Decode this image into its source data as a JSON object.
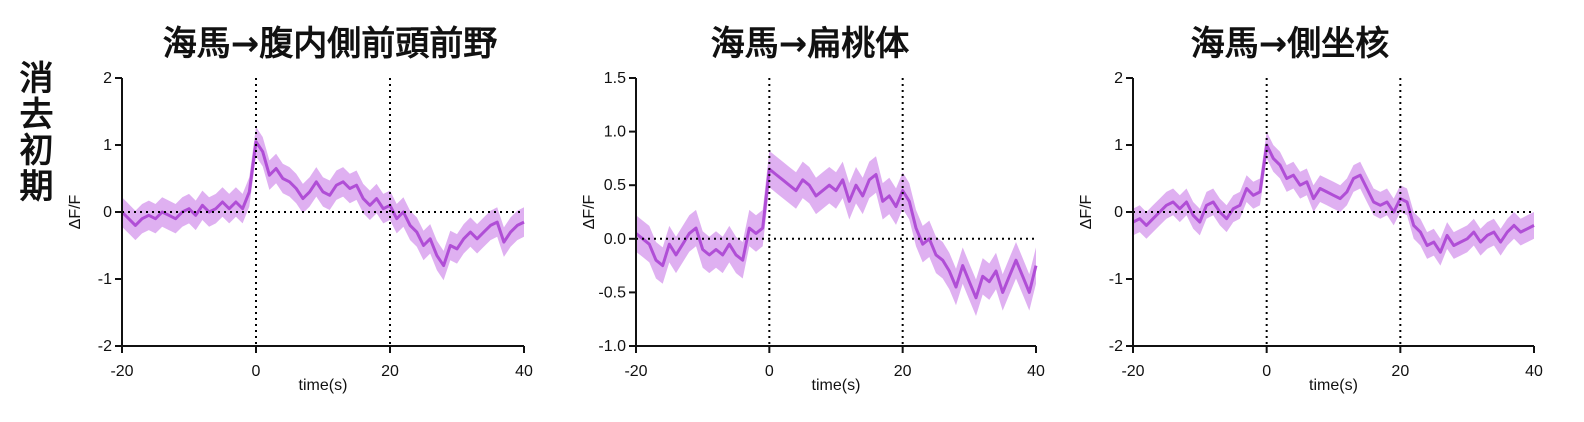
{
  "row_label": "消去初期",
  "colors": {
    "line": "#b04ed6",
    "band": "#d9a2ee",
    "axis": "#111111"
  },
  "chart_data": [
    {
      "type": "line",
      "title": "海馬→腹内側前頭前野",
      "xlabel": "time(s)",
      "ylabel": "ΔF/F",
      "xlim": [
        -20,
        40
      ],
      "ylim": [
        -2,
        2
      ],
      "xticks": [
        -20,
        0,
        20,
        40
      ],
      "yticks": [
        -2,
        -1,
        0,
        1,
        2
      ],
      "xtick_labels": [
        "-20",
        "0",
        "20",
        "40"
      ],
      "ytick_labels": [
        "-2",
        "-1",
        "0",
        "1",
        "2"
      ],
      "vlines": [
        0,
        20
      ],
      "hline": 0,
      "grid": false,
      "series": [
        {
          "x": [
            -20,
            -19,
            -18,
            -17,
            -16,
            -15,
            -14,
            -13,
            -12,
            -11,
            -10,
            -9,
            -8,
            -7,
            -6,
            -5,
            -4,
            -3,
            -2,
            -1,
            0,
            1,
            2,
            3,
            4,
            5,
            6,
            7,
            8,
            9,
            10,
            11,
            12,
            13,
            14,
            15,
            16,
            17,
            18,
            19,
            20,
            21,
            22,
            23,
            24,
            25,
            26,
            27,
            28,
            29,
            30,
            31,
            32,
            33,
            34,
            35,
            36,
            37,
            38,
            39,
            40
          ],
          "values": [
            0.0,
            -0.1,
            -0.2,
            -0.1,
            -0.05,
            -0.1,
            0.0,
            -0.05,
            -0.1,
            0.0,
            0.05,
            -0.05,
            0.1,
            0.0,
            0.05,
            0.15,
            0.05,
            0.15,
            0.05,
            0.3,
            1.05,
            0.9,
            0.55,
            0.65,
            0.5,
            0.45,
            0.35,
            0.2,
            0.3,
            0.45,
            0.3,
            0.25,
            0.4,
            0.45,
            0.35,
            0.4,
            0.2,
            0.1,
            0.2,
            0.05,
            0.1,
            -0.1,
            0.0,
            -0.2,
            -0.3,
            -0.5,
            -0.4,
            -0.65,
            -0.8,
            -0.5,
            -0.55,
            -0.4,
            -0.3,
            -0.4,
            -0.3,
            -0.2,
            -0.15,
            -0.45,
            -0.3,
            -0.2,
            -0.15
          ],
          "spread": 0.22
        }
      ]
    },
    {
      "type": "line",
      "title": "海馬→扁桃体",
      "xlabel": "time(s)",
      "ylabel": "ΔF/F",
      "xlim": [
        -20,
        40
      ],
      "ylim": [
        -1.0,
        1.5
      ],
      "xticks": [
        -20,
        0,
        20,
        40
      ],
      "yticks": [
        -1.0,
        -0.5,
        0.0,
        0.5,
        1.0,
        1.5
      ],
      "xtick_labels": [
        "-20",
        "0",
        "20",
        "40"
      ],
      "ytick_labels": [
        "-1.0",
        "-0.5",
        "0.0",
        "0.5",
        "1.0",
        "1.5"
      ],
      "vlines": [
        0,
        20
      ],
      "hline": 0,
      "grid": false,
      "series": [
        {
          "x": [
            -20,
            -19,
            -18,
            -17,
            -16,
            -15,
            -14,
            -13,
            -12,
            -11,
            -10,
            -9,
            -8,
            -7,
            -6,
            -5,
            -4,
            -3,
            -2,
            -1,
            0,
            1,
            2,
            3,
            4,
            5,
            6,
            7,
            8,
            9,
            10,
            11,
            12,
            13,
            14,
            15,
            16,
            17,
            18,
            19,
            20,
            21,
            22,
            23,
            24,
            25,
            26,
            27,
            28,
            29,
            30,
            31,
            32,
            33,
            34,
            35,
            36,
            37,
            38,
            39,
            40
          ],
          "values": [
            0.05,
            0.0,
            -0.05,
            -0.2,
            -0.25,
            -0.05,
            -0.15,
            -0.05,
            0.05,
            0.1,
            -0.1,
            -0.15,
            -0.1,
            -0.15,
            -0.05,
            -0.15,
            -0.2,
            0.1,
            0.05,
            0.1,
            0.65,
            0.6,
            0.55,
            0.5,
            0.45,
            0.55,
            0.5,
            0.4,
            0.45,
            0.5,
            0.45,
            0.55,
            0.35,
            0.5,
            0.4,
            0.55,
            0.6,
            0.35,
            0.4,
            0.3,
            0.45,
            0.35,
            0.1,
            -0.05,
            0.0,
            -0.15,
            -0.2,
            -0.3,
            -0.45,
            -0.25,
            -0.4,
            -0.55,
            -0.35,
            -0.4,
            -0.3,
            -0.5,
            -0.35,
            -0.2,
            -0.35,
            -0.5,
            -0.25
          ],
          "spread": 0.17
        }
      ]
    },
    {
      "type": "line",
      "title": "海馬→側坐核",
      "xlabel": "time(s)",
      "ylabel": "ΔF/F",
      "xlim": [
        -20,
        40
      ],
      "ylim": [
        -2,
        2
      ],
      "xticks": [
        -20,
        0,
        20,
        40
      ],
      "yticks": [
        -2,
        -1,
        0,
        1,
        2
      ],
      "xtick_labels": [
        "-20",
        "0",
        "20",
        "40"
      ],
      "ytick_labels": [
        "-2",
        "-1",
        "0",
        "1",
        "2"
      ],
      "vlines": [
        0,
        20
      ],
      "hline": 0,
      "grid": false,
      "series": [
        {
          "x": [
            -20,
            -19,
            -18,
            -17,
            -16,
            -15,
            -14,
            -13,
            -12,
            -11,
            -10,
            -9,
            -8,
            -7,
            -6,
            -5,
            -4,
            -3,
            -2,
            -1,
            0,
            1,
            2,
            3,
            4,
            5,
            6,
            7,
            8,
            9,
            10,
            11,
            12,
            13,
            14,
            15,
            16,
            17,
            18,
            19,
            20,
            21,
            22,
            23,
            24,
            25,
            26,
            27,
            28,
            29,
            30,
            31,
            32,
            33,
            34,
            35,
            36,
            37,
            38,
            39,
            40
          ],
          "values": [
            -0.15,
            -0.1,
            -0.2,
            -0.1,
            0.0,
            0.1,
            0.15,
            0.05,
            0.15,
            -0.05,
            -0.15,
            0.1,
            0.15,
            0.0,
            -0.1,
            0.05,
            0.1,
            0.35,
            0.25,
            0.3,
            1.0,
            0.8,
            0.7,
            0.5,
            0.55,
            0.4,
            0.45,
            0.2,
            0.35,
            0.3,
            0.25,
            0.2,
            0.3,
            0.5,
            0.55,
            0.35,
            0.15,
            0.1,
            0.15,
            0.0,
            0.2,
            0.15,
            -0.2,
            -0.3,
            -0.5,
            -0.45,
            -0.6,
            -0.35,
            -0.5,
            -0.45,
            -0.4,
            -0.3,
            -0.45,
            -0.35,
            -0.3,
            -0.45,
            -0.3,
            -0.2,
            -0.3,
            -0.25,
            -0.2
          ],
          "spread": 0.2
        }
      ]
    }
  ]
}
